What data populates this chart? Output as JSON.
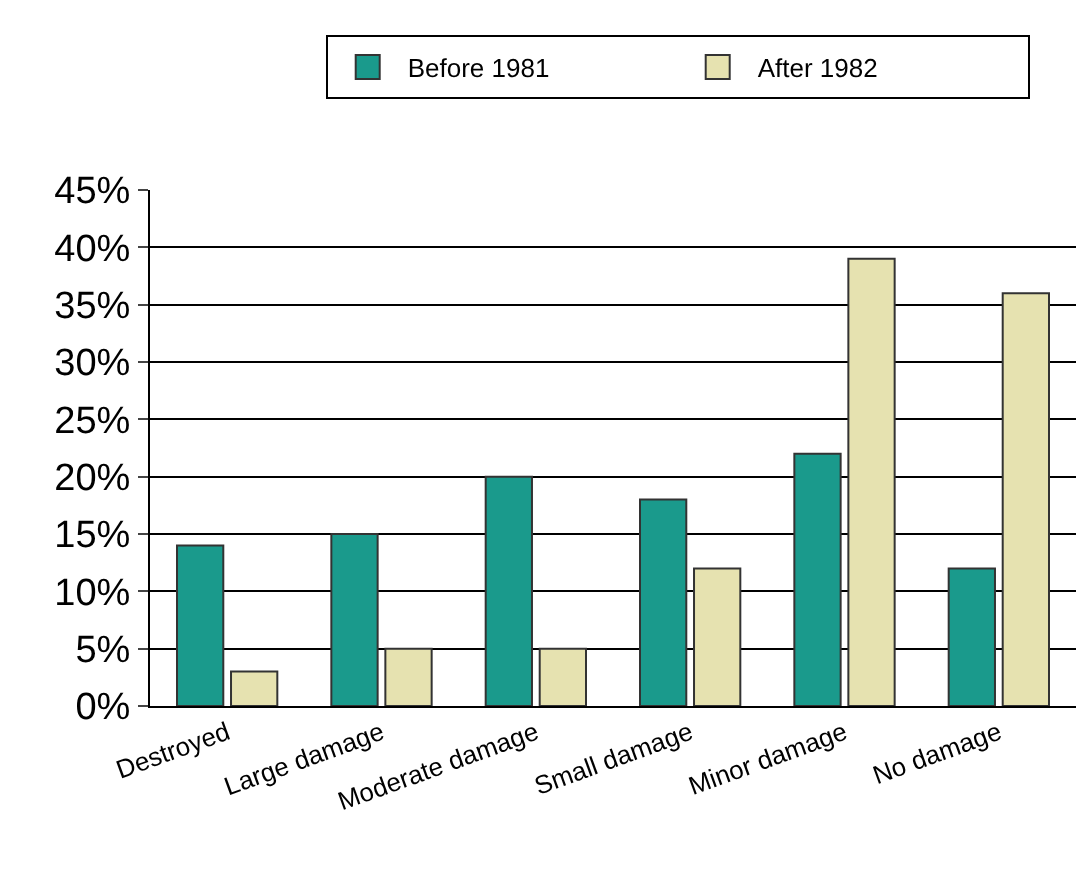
{
  "chart_data": {
    "type": "bar",
    "categories": [
      "Destroyed",
      "Large damage",
      "Moderate damage",
      "Small damage",
      "Minor damage",
      "No damage"
    ],
    "series": [
      {
        "name": "Before 1981",
        "color": "#1a9a8c",
        "values": [
          14,
          15,
          20,
          18,
          22,
          12
        ]
      },
      {
        "name": "After 1982",
        "color": "#e6e2b0",
        "values": [
          3,
          5,
          5,
          12,
          39,
          36
        ]
      }
    ],
    "ylim": [
      0,
      45
    ],
    "yticks": [
      {
        "value": 0,
        "label": "0%"
      },
      {
        "value": 5,
        "label": "5%"
      },
      {
        "value": 10,
        "label": "10%"
      },
      {
        "value": 15,
        "label": "15%"
      },
      {
        "value": 20,
        "label": "20%"
      },
      {
        "value": 25,
        "label": "25%"
      },
      {
        "value": 30,
        "label": "30%"
      },
      {
        "value": 35,
        "label": "35%"
      },
      {
        "value": 40,
        "label": "40%"
      },
      {
        "value": 45,
        "label": "45%"
      }
    ],
    "grid": "y",
    "legend": "top right"
  }
}
